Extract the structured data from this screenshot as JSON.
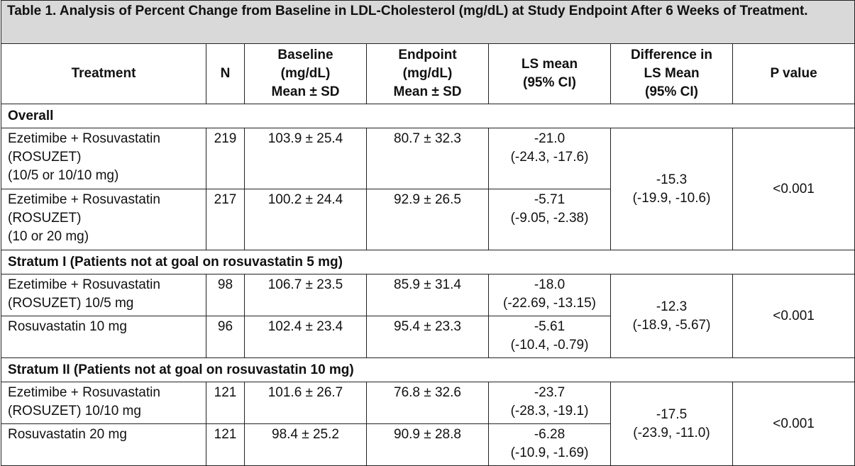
{
  "caption": "Table 1. Analysis of Percent Change from Baseline in LDL-Cholesterol (mg/dL) at Study Endpoint After 6 Weeks of Treatment.",
  "headers": {
    "treatment": "Treatment",
    "n": "N",
    "baseline": [
      "Baseline",
      "(mg/dL)",
      "Mean ± SD"
    ],
    "endpoint": [
      "Endpoint",
      "(mg/dL)",
      "Mean ± SD"
    ],
    "ls_mean": [
      "LS mean",
      "(95% CI)"
    ],
    "difference": [
      "Difference in",
      "LS Mean",
      "(95% CI)"
    ],
    "p_value": "P value"
  },
  "groups": [
    {
      "title": "Overall",
      "difference": [
        "-15.3",
        "(-19.9, -10.6)"
      ],
      "p_value": "<0.001",
      "rows": [
        {
          "treatment": [
            "Ezetimibe + Rosuvastatin",
            "(ROSUZET)",
            "(10/5 or 10/10 mg)"
          ],
          "n": "219",
          "baseline": "103.9 ± 25.4",
          "endpoint": "80.7 ± 32.3",
          "ls_mean": [
            "-21.0",
            "(-24.3, -17.6)"
          ]
        },
        {
          "treatment": [
            "Ezetimibe + Rosuvastatin",
            "(ROSUZET)",
            "(10 or 20 mg)"
          ],
          "n": "217",
          "baseline": "100.2 ± 24.4",
          "endpoint": "92.9 ± 26.5",
          "ls_mean": [
            "-5.71",
            "(-9.05, -2.38)"
          ]
        }
      ]
    },
    {
      "title": "Stratum I (Patients not at goal on rosuvastatin 5 mg)",
      "difference": [
        "-12.3",
        "(-18.9, -5.67)"
      ],
      "p_value": "<0.001",
      "rows": [
        {
          "treatment": [
            "Ezetimibe + Rosuvastatin",
            "(ROSUZET) 10/5 mg"
          ],
          "n": "98",
          "baseline": "106.7 ± 23.5",
          "endpoint": "85.9 ± 31.4",
          "ls_mean": [
            "-18.0",
            "(-22.69, -13.15)"
          ]
        },
        {
          "treatment": [
            "Rosuvastatin 10 mg"
          ],
          "n": "96",
          "baseline": "102.4 ± 23.4",
          "endpoint": "95.4 ± 23.3",
          "ls_mean": [
            "-5.61",
            "(-10.4, -0.79)"
          ]
        }
      ]
    },
    {
      "title": "Stratum II (Patients not at goal on rosuvastatin 10 mg)",
      "difference": [
        "-17.5",
        "(-23.9, -11.0)"
      ],
      "p_value": "<0.001",
      "rows": [
        {
          "treatment": [
            "Ezetimibe + Rosuvastatin",
            "(ROSUZET) 10/10 mg"
          ],
          "n": "121",
          "baseline": "101.6 ± 26.7",
          "endpoint": "76.8 ± 32.6",
          "ls_mean": [
            "-23.7",
            "(-28.3, -19.1)"
          ]
        },
        {
          "treatment": [
            "Rosuvastatin 20 mg"
          ],
          "n": "121",
          "baseline": "98.4 ± 25.2",
          "endpoint": "90.9 ± 28.8",
          "ls_mean": [
            "-6.28",
            "(-10.9, -1.69)"
          ]
        }
      ]
    }
  ]
}
